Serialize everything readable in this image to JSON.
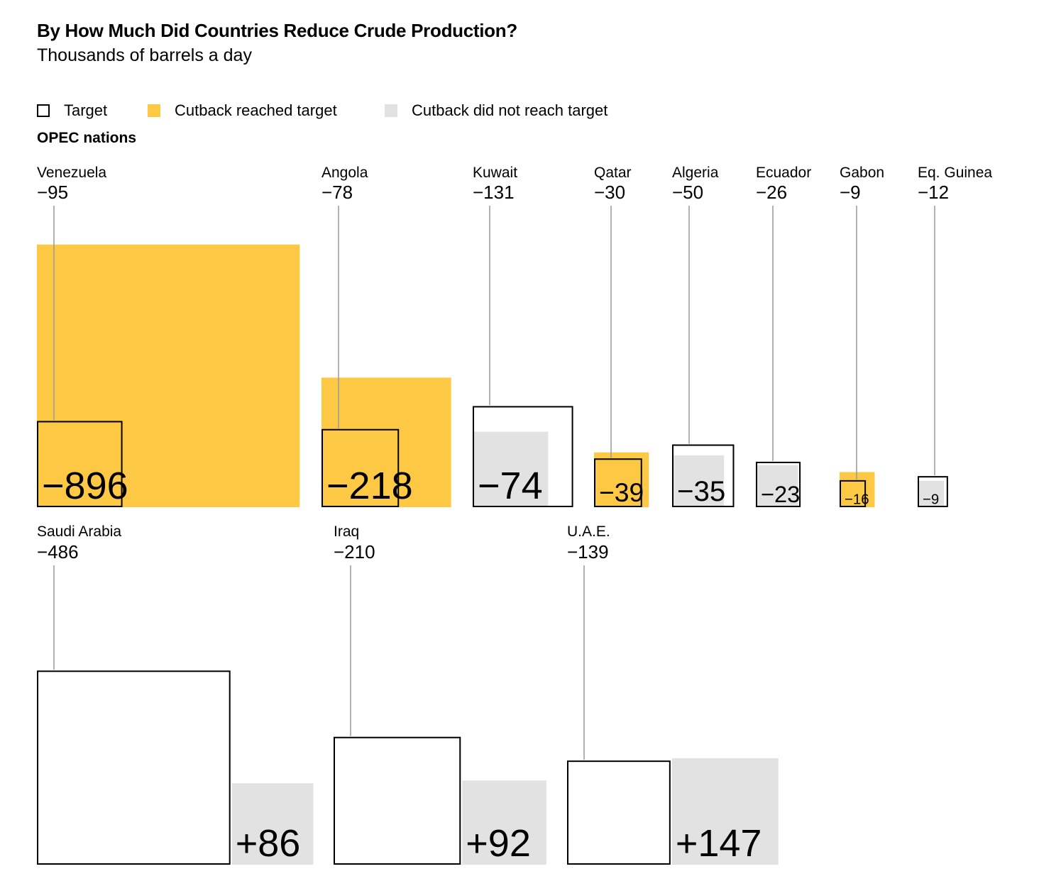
{
  "title": "By How Much Did Countries Reduce Crude Production?",
  "subtitle": "Thousands of barrels a day",
  "legend": [
    {
      "label": "Target",
      "color": "#ffffff",
      "border": "#000000"
    },
    {
      "label": "Cutback reached target",
      "color": "#fdc944",
      "border": "none"
    },
    {
      "label": "Cutback did not reach target",
      "color": "#e2e2e2",
      "border": "none"
    }
  ],
  "group_label": "OPEC nations",
  "colors": {
    "reached": "#fdc944",
    "not_reached": "#e2e2e2",
    "target_stroke": "#000000",
    "leader": "#999999"
  },
  "chart_data": {
    "type": "proportional-square",
    "unit": "Thousands of barrels a day",
    "rows": [
      {
        "countries": [
          {
            "name": "Venezuela",
            "target": -95,
            "actual": -896,
            "target_label": "−95",
            "actual_label": "−896",
            "status": "reached"
          },
          {
            "name": "Angola",
            "target": -78,
            "actual": -218,
            "target_label": "−78",
            "actual_label": "−218",
            "status": "reached"
          },
          {
            "name": "Kuwait",
            "target": -131,
            "actual": -74,
            "target_label": "−131",
            "actual_label": "−74",
            "status": "not_reached"
          },
          {
            "name": "Qatar",
            "target": -30,
            "actual": -39,
            "target_label": "−30",
            "actual_label": "−39",
            "status": "reached"
          },
          {
            "name": "Algeria",
            "target": -50,
            "actual": -35,
            "target_label": "−50",
            "actual_label": "−35",
            "status": "not_reached"
          },
          {
            "name": "Ecuador",
            "target": -26,
            "actual": -23,
            "target_label": "−26",
            "actual_label": "−23",
            "status": "not_reached"
          },
          {
            "name": "Gabon",
            "target": -9,
            "actual": -16,
            "target_label": "−9",
            "actual_label": "−16",
            "status": "reached"
          },
          {
            "name": "Eq. Guinea",
            "target": -12,
            "actual": -9,
            "target_label": "−12",
            "actual_label": "−9",
            "status": "not_reached"
          }
        ]
      },
      {
        "countries": [
          {
            "name": "Saudi Arabia",
            "target": -486,
            "actual": 86,
            "target_label": "−486",
            "actual_label": "+86",
            "status": "not_reached"
          },
          {
            "name": "Iraq",
            "target": -210,
            "actual": 92,
            "target_label": "−210",
            "actual_label": "+92",
            "status": "not_reached"
          },
          {
            "name": "U.A.E.",
            "target": -139,
            "actual": 147,
            "target_label": "−139",
            "actual_label": "+147",
            "status": "not_reached"
          }
        ]
      }
    ]
  }
}
